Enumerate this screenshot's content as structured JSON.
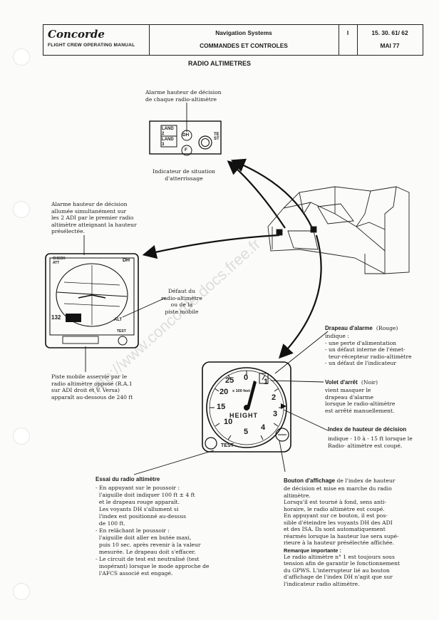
{
  "header": {
    "brand": "Concorde",
    "manual": "FLIGHT CREW OPERATING MANUAL",
    "system": "Navigation Systems",
    "subtitle": "COMMANDES ET CONTROLES",
    "volume": "I",
    "ref": "15. 30. 61/ 62",
    "date": "MAI 77"
  },
  "page_title": "RADIO ALTIMETRES",
  "panel": {
    "callout_top": "Alarme hauteur de décision\nde chaque radio-altimètre",
    "land2": "LAND\n2",
    "land3": "LAND\n3",
    "dh": "DH",
    "f": "F",
    "test": "TEST",
    "caption": "Indicateur de situation\nd'atterrissage"
  },
  "adi": {
    "alarm_note": "Alarme hauteur de décision\nallumée simultanément sur\nles 2 ADI par le premier radio\naltimètre atteignant la hauteur\nprésélectée.",
    "check": "CHECK\nATT",
    "dh": "DH",
    "value": "132",
    "alt": "ALT",
    "test": "TEST",
    "fault_note": "Défaut du\nradio-altimètre\nou de la\npiste mobile",
    "runway_note": "Piste mobile asservie par le\nradio altimètre opposé (R.A.1\nsur ADI droit et V. Versa)\napparaît au-dessous de 240 ft"
  },
  "gauge": {
    "label": "HEIGHT",
    "mult": "x 100 feet",
    "test": "TEST",
    "ticks": [
      "0",
      "1",
      "2",
      "3",
      "4",
      "5",
      "10",
      "15",
      "20",
      "25"
    ]
  },
  "flag_note": {
    "title": "Drapeau d'alarme",
    "title2": "(Rouge)",
    "body": "indique :\n- une perte d'alimentation\n- un défaut interne de l'émet-\n  teur-récepteur radio-altimètre\n- un défaut de l'indicateur"
  },
  "shutter_note": {
    "title": "Volet d'arrêt",
    "title2": "(Noir)",
    "body": "vient masquer le\ndrapeau d'alarme\nlorsque le radio-altimètre\nest arrêté manuellement."
  },
  "index_note": {
    "title": "Index de hauteur de décision",
    "body": "indique - 10 à - 15 ft lorsque le\nRadio- altimètre est coupé."
  },
  "test_note": {
    "title": "Essai du radio altimètre",
    "body": "- En appuyant sur le poussoir :\n  l'aiguille doit indiquer 100 ft ± 4 ft\n  et le drapeau rouge apparaît.\n  Les voyants DH s'allument si\n  l'index est positionné au-dessus\n  de 100 ft.\n- En relâchant le poussoir :\n  l'aiguille doit aller en butée maxi,\n  puis 10 sec. après revenir à la valeur\n  mesurée. Le drapeau doit s'effacer.\n- Le circuit de test est neutralisé (test\n  inopérant) lorsque le mode approche de\n  l'AFCS associé est engagé."
  },
  "knob_note": {
    "title": "Bouton d'affichage",
    "lead": " de l'index de hauteur",
    "body": "de décision et mise en marche du radio\naltimètre.\nLorsqu'il est tourné à fond, sens anti-\nhoraire, le radio altimètre est coupé.\nEn appuyant sur ce bouton, il est pos-\nsible d'éteindre les voyants DH des ADI\net des ISA. Ils sont automatiquement\nréarmés lorsque la hauteur lue sera supé-\nrieure à la hauteur présélectée affichée.",
    "remark_title": "Remarque importante :",
    "remark": "Le radio altimètre n° 1 est toujours sous\ntension afin de garantir le fonctionnement\ndu GPWS. L'interrupteur lié au bouton\nd'affichage de l'index DH n'agit que sur\nl'indicateur radio altimètre."
  },
  "watermark": "http://www.concorde.docs.free.fr"
}
